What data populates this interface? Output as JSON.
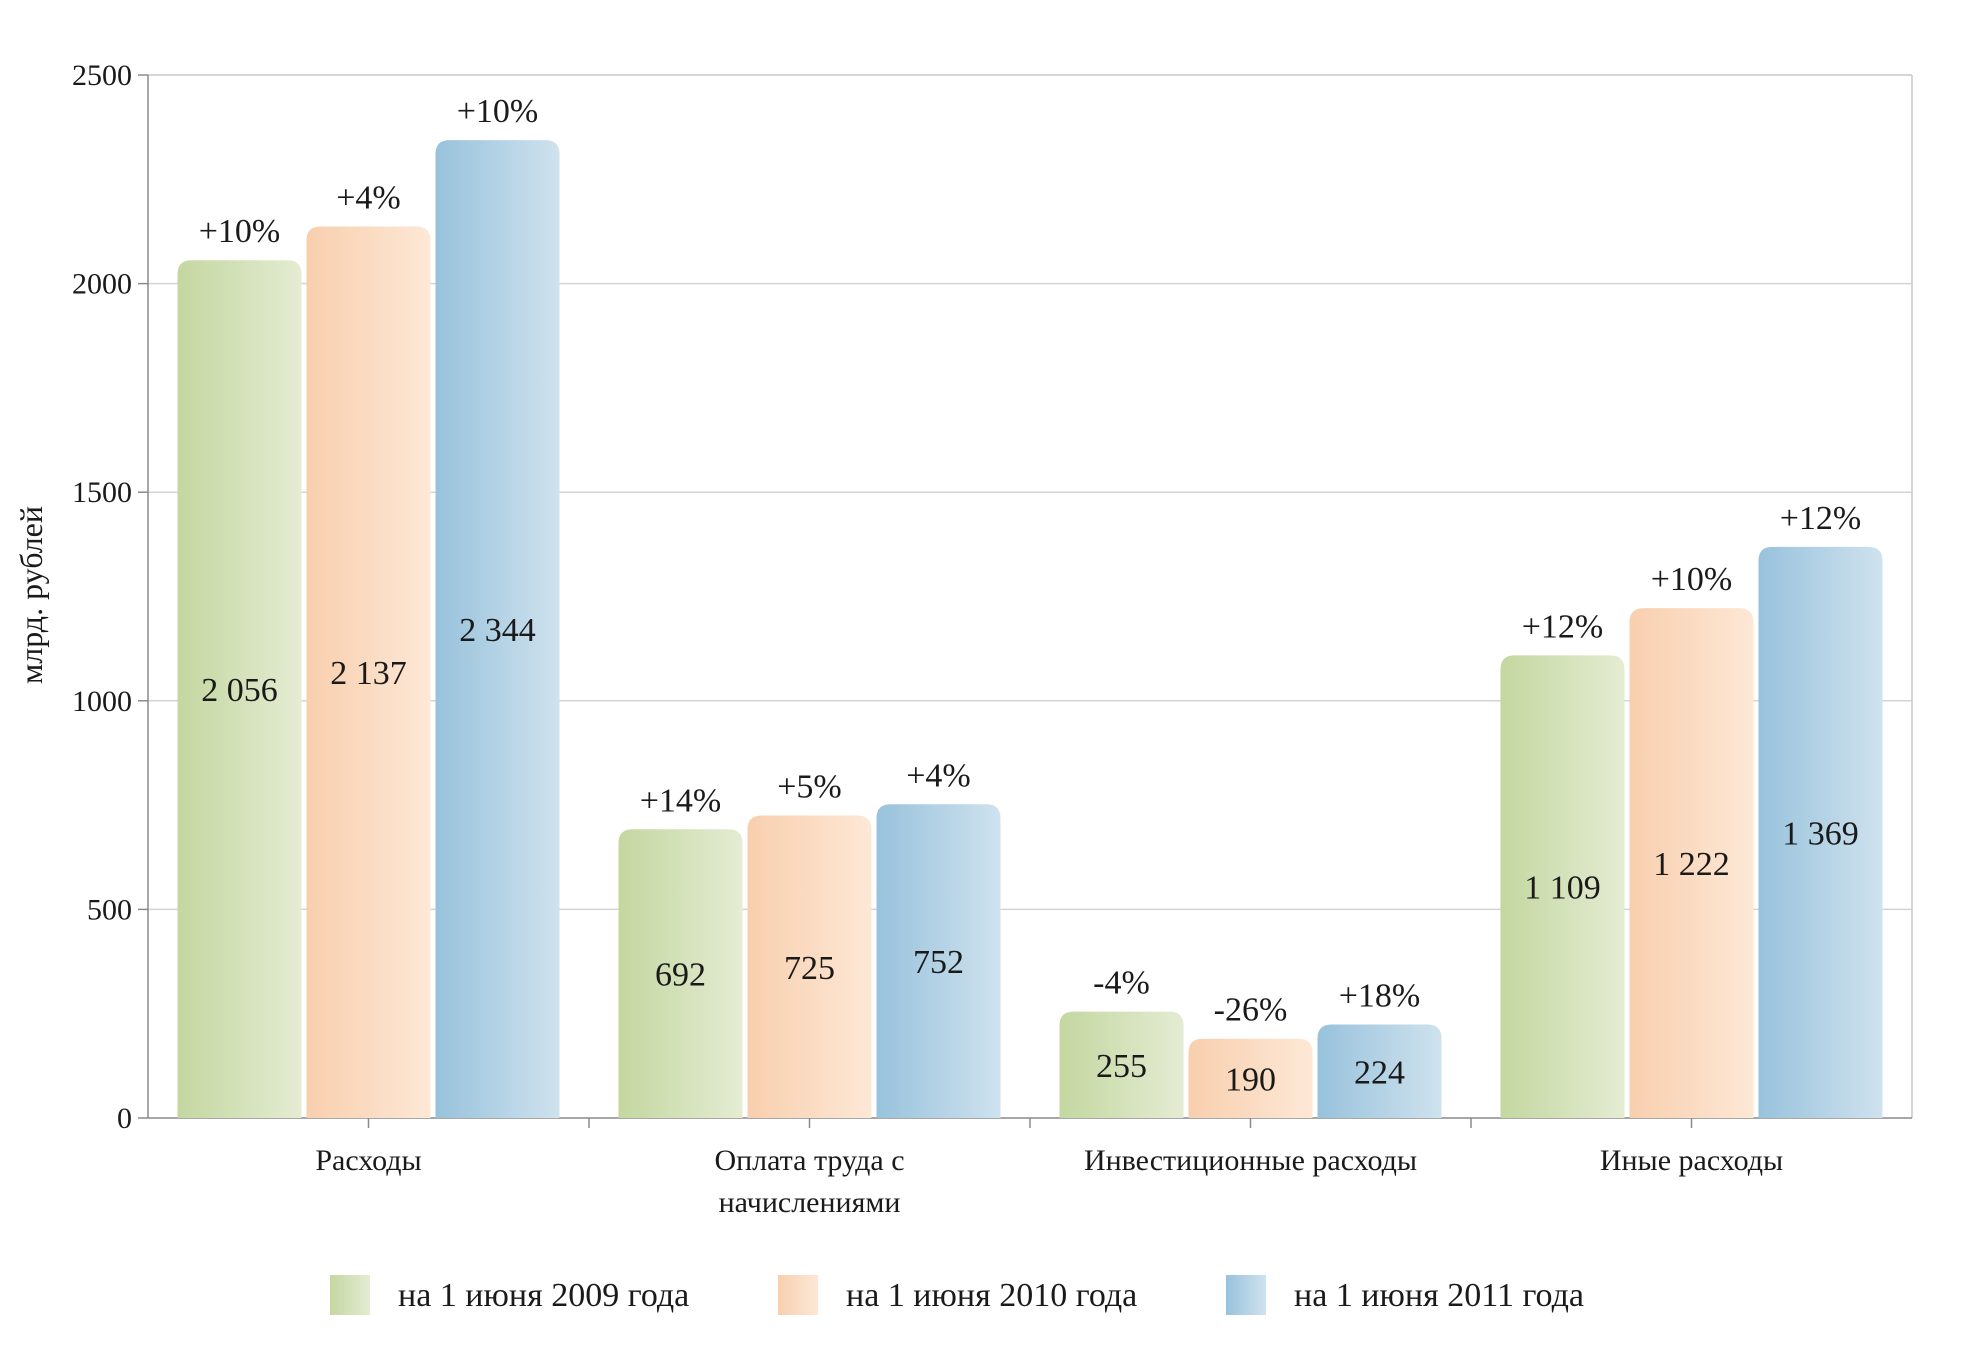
{
  "chart_data": {
    "type": "bar",
    "ylabel": "млрд. рублей",
    "xlabel": "",
    "title": "",
    "ylim": [
      0,
      2500
    ],
    "yticks": [
      0,
      500,
      1000,
      1500,
      2000,
      2500
    ],
    "grid": true,
    "legend_position": "bottom",
    "categories": [
      [
        "Расходы"
      ],
      [
        "Оплата труда с",
        "начислениями"
      ],
      [
        "Инвестиционные расходы"
      ],
      [
        "Иные расходы"
      ]
    ],
    "series": [
      {
        "name": "на 1 июня 2009 года",
        "color": "#c4d7a0",
        "color_light": "#e4ecd3",
        "values": [
          2056,
          692,
          255,
          1109
        ],
        "value_labels": [
          "2 056",
          "692",
          "255",
          "1 109"
        ],
        "change_labels": [
          "+10%",
          "+14%",
          "-4%",
          "+12%"
        ]
      },
      {
        "name": "на 1 июня 2010 года",
        "color": "#f8cfae",
        "color_light": "#fde8d6",
        "values": [
          2137,
          725,
          190,
          1222
        ],
        "value_labels": [
          "2 137",
          "725",
          "190",
          "1 222"
        ],
        "change_labels": [
          "+4%",
          "+5%",
          "-26%",
          "+10%"
        ]
      },
      {
        "name": "на 1 июня 2011 года",
        "color": "#98c2dc",
        "color_light": "#cfe2ee",
        "values": [
          2344,
          752,
          224,
          1369
        ],
        "value_labels": [
          "2 344",
          "752",
          "224",
          "1 369"
        ],
        "change_labels": [
          "+10%",
          "+4%",
          "+18%",
          "+12%"
        ]
      }
    ]
  }
}
